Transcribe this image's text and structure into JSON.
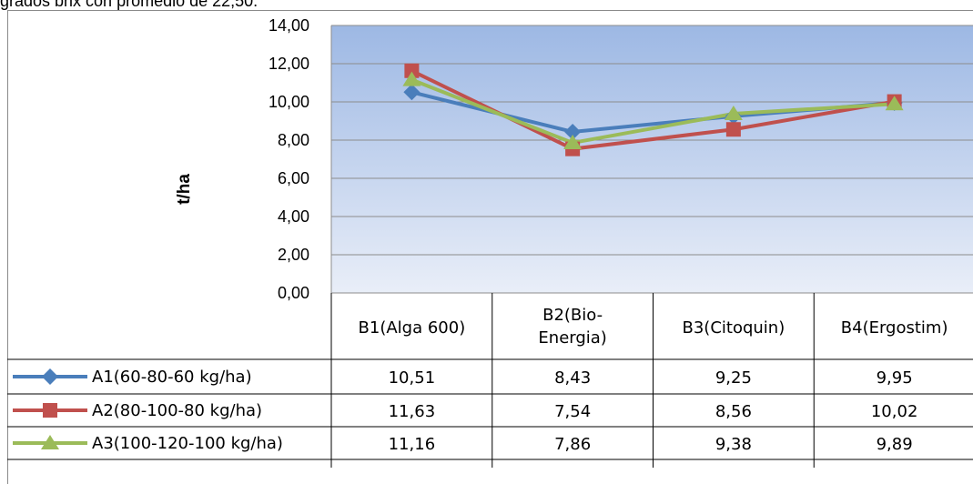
{
  "caption": "grados brix con promedio de 22,50.",
  "chart_data": {
    "type": "line",
    "ylabel": "t/ha",
    "ylim": [
      0,
      14
    ],
    "ytick_labels": [
      "0,00",
      "2,00",
      "4,00",
      "6,00",
      "8,00",
      "10,00",
      "12,00",
      "14,00"
    ],
    "categories": [
      "B1(Alga 600)",
      "B2(Bio-Energia)",
      "B3(Citoquin)",
      "B4(Ergostim)"
    ],
    "category_lines": [
      [
        "B1(Alga 600)"
      ],
      [
        "B2(Bio-",
        "Energia)"
      ],
      [
        "B3(Citoquin)"
      ],
      [
        "B4(Ergostim)"
      ]
    ],
    "grid": true,
    "legend": "data-table",
    "series": [
      {
        "name": "A1(60-80-60 kg/ha)",
        "marker": "diamond",
        "color": "#4a7ebb",
        "values": [
          10.51,
          8.43,
          9.25,
          9.95
        ],
        "labels": [
          "10,51",
          "8,43",
          "9,25",
          "9,95"
        ]
      },
      {
        "name": "A2(80-100-80 kg/ha)",
        "marker": "square",
        "color": "#c0504d",
        "values": [
          11.63,
          7.54,
          8.56,
          10.02
        ],
        "labels": [
          "11,63",
          "7,54",
          "8,56",
          "10,02"
        ]
      },
      {
        "name": "A3(100-120-100 kg/ha)",
        "marker": "triangle",
        "color": "#9bbb59",
        "values": [
          11.16,
          7.86,
          9.38,
          9.89
        ],
        "labels": [
          "11,16",
          "7,86",
          "9,38",
          "9,89"
        ]
      }
    ],
    "plot_background": [
      "#9db8e4",
      "#e9eef8"
    ]
  }
}
